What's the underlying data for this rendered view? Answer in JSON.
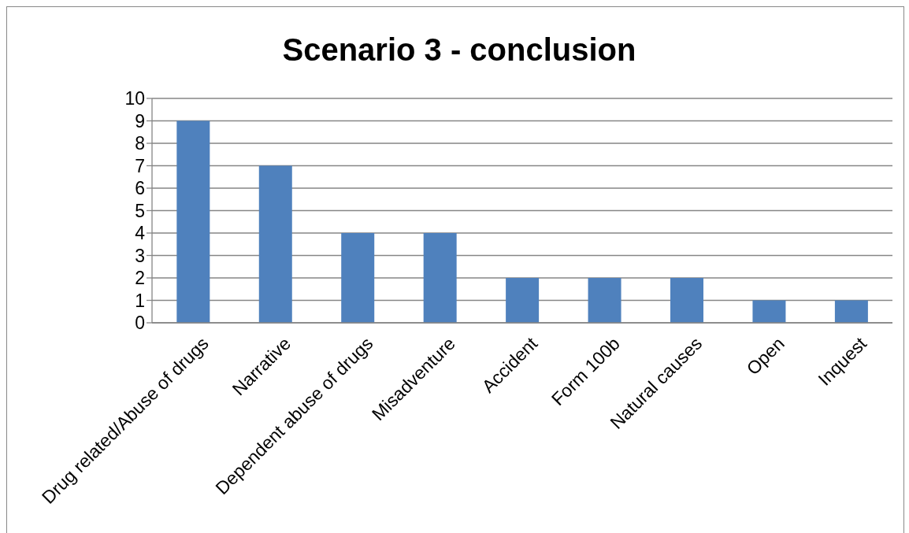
{
  "chart_data": {
    "type": "bar",
    "title": "Scenario 3 - conclusion",
    "categories": [
      "Drug related/Abuse of drugs",
      "Narrative",
      "Dependent abuse of drugs",
      "Misadventure",
      "Accident",
      "Form 100b",
      "Natural causes",
      "Open",
      "Inquest"
    ],
    "values": [
      9,
      7,
      4,
      4,
      2,
      2,
      2,
      1,
      1
    ],
    "color": "#4f81bd",
    "ylim": [
      0,
      10
    ],
    "yticks": [
      0,
      1,
      2,
      3,
      4,
      5,
      6,
      7,
      8,
      9,
      10
    ],
    "grid": "y"
  }
}
